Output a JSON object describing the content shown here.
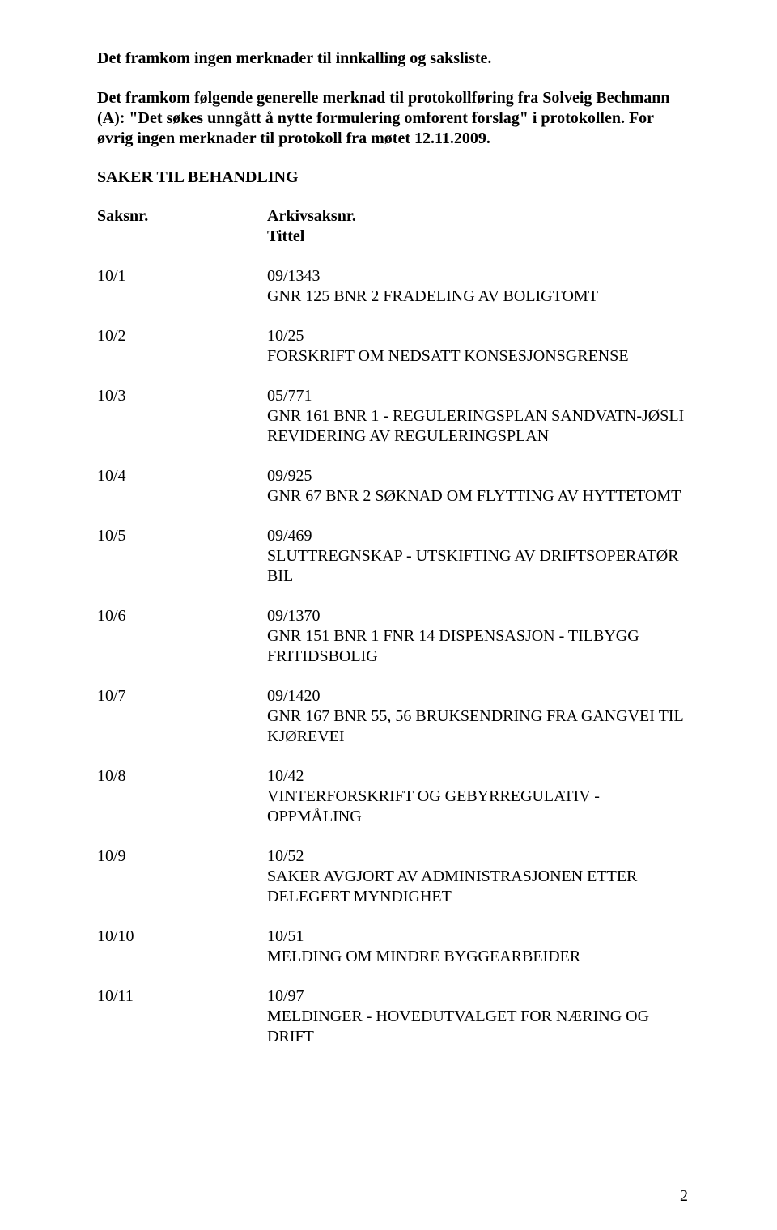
{
  "intro1": "Det framkom ingen merknader til innkalling og saksliste.",
  "intro2": "Det framkom følgende generelle merknad til protokollføring fra Solveig Bechmann (A): \"Det søkes unngått å nytte formulering omforent forslag\" i protokollen. For øvrig ingen merknader til protokoll fra møtet 12.11.2009.",
  "section_heading": "SAKER TIL BEHANDLING",
  "header": {
    "col1": "Saksnr.",
    "col2a": "Arkivsaksnr.",
    "col2b": "Tittel"
  },
  "entries": [
    {
      "id": "10/1",
      "arkiv": "09/1343",
      "title": "GNR 125 BNR 2 FRADELING AV BOLIGTOMT"
    },
    {
      "id": "10/2",
      "arkiv": "10/25",
      "title": "FORSKRIFT OM NEDSATT KONSESJONSGRENSE"
    },
    {
      "id": "10/3",
      "arkiv": "05/771",
      "title": "GNR 161 BNR 1 - REGULERINGSPLAN SANDVATN-JØSLI REVIDERING AV REGULERINGSPLAN"
    },
    {
      "id": "10/4",
      "arkiv": "09/925",
      "title": "GNR 67 BNR 2 SØKNAD OM FLYTTING AV HYTTETOMT"
    },
    {
      "id": "10/5",
      "arkiv": "09/469",
      "title": "SLUTTREGNSKAP - UTSKIFTING AV DRIFTSOPERATØR BIL"
    },
    {
      "id": "10/6",
      "arkiv": "09/1370",
      "title": "GNR 151 BNR 1 FNR 14 DISPENSASJON - TILBYGG FRITIDSBOLIG"
    },
    {
      "id": "10/7",
      "arkiv": "09/1420",
      "title": "GNR 167 BNR 55, 56 BRUKSENDRING FRA GANGVEI TIL KJØREVEI"
    },
    {
      "id": "10/8",
      "arkiv": "10/42",
      "title": "VINTERFORSKRIFT OG GEBYRREGULATIV -  OPPMÅLING"
    },
    {
      "id": "10/9",
      "arkiv": "10/52",
      "title": "SAKER AVGJORT AV ADMINISTRASJONEN ETTER DELEGERT MYNDIGHET"
    },
    {
      "id": "10/10",
      "arkiv": "10/51",
      "title": "MELDING OM MINDRE BYGGEARBEIDER"
    },
    {
      "id": "10/11",
      "arkiv": "10/97",
      "title": "MELDINGER -  HOVEDUTVALGET FOR NÆRING OG DRIFT"
    }
  ],
  "page_number": "2",
  "colors": {
    "text": "#000000",
    "background": "#ffffff"
  },
  "font": {
    "family": "Times New Roman",
    "size_pt": 15
  }
}
